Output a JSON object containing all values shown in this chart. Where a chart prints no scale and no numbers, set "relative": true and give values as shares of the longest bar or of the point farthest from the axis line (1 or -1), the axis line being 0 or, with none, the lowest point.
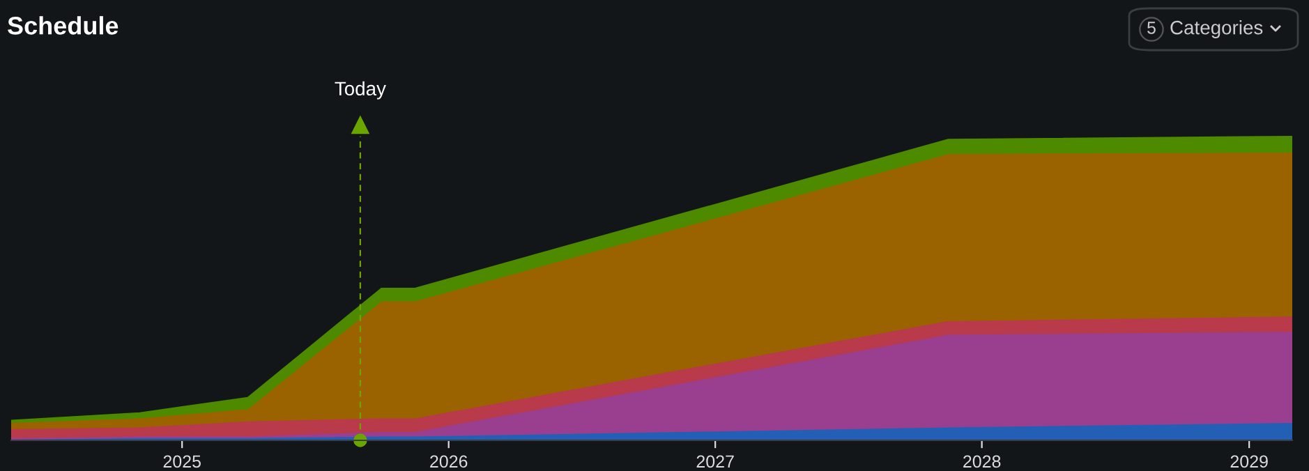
{
  "chart_data": {
    "type": "area",
    "title": "Schedule",
    "stacked": true,
    "relative": true,
    "legend": false,
    "grid": false,
    "x": [
      "2024-05-12",
      "2024-11-04",
      "2025-04-01",
      "2025-10-01",
      "2025-11-16",
      "2027-11-16",
      "2029-03-01"
    ],
    "xlim": [
      "2024-05-12",
      "2029-03-01"
    ],
    "xticks": [
      {
        "value": "2025",
        "label": "2025"
      },
      {
        "value": "2026",
        "label": "2026"
      },
      {
        "value": "2027",
        "label": "2027"
      },
      {
        "value": "2028",
        "label": "2028"
      },
      {
        "value": "2029",
        "label": "2029"
      }
    ],
    "series": [
      {
        "color": "#2360b5",
        "values": [
          0.005,
          0.01,
          0.01,
          0.015,
          0.015,
          0.045,
          0.06
        ]
      },
      {
        "color": "#9a3f8f",
        "values": [
          0.005,
          0.005,
          0.005,
          0.015,
          0.015,
          0.305,
          0.3
        ]
      },
      {
        "color": "#b83a4b",
        "values": [
          0.03,
          0.03,
          0.05,
          0.045,
          0.045,
          0.045,
          0.05
        ]
      },
      {
        "color": "#9a6300",
        "values": [
          0.02,
          0.03,
          0.04,
          0.385,
          0.385,
          0.55,
          0.54
        ]
      },
      {
        "color": "#4e8a00",
        "values": [
          0.005,
          0.015,
          0.035,
          0.04,
          0.04,
          0.045,
          0.05
        ]
      }
    ],
    "ref_lines": [
      {
        "axis": "x",
        "value": "2025-09-02",
        "label": "Today",
        "color": "#6aa500",
        "line_style": "dashed"
      }
    ],
    "annotations": [
      "5",
      "Categories"
    ]
  }
}
